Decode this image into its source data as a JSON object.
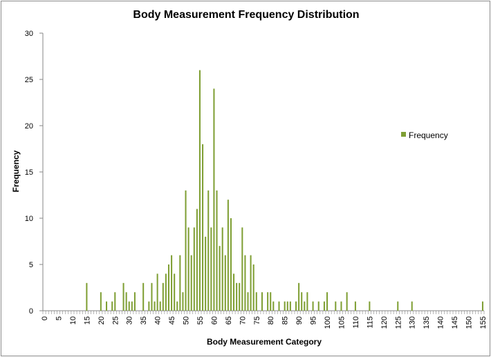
{
  "chart_data": {
    "type": "bar",
    "title": "Body Measurement Frequency Distribution",
    "xlabel": "Body Measurement Category",
    "ylabel": "Frequency",
    "ylim": [
      0,
      30
    ],
    "yticks": [
      0,
      5,
      10,
      15,
      20,
      25,
      30
    ],
    "xlim": [
      0,
      155
    ],
    "xtick_step": 5,
    "grid": false,
    "legend_position": "right",
    "series": [
      {
        "name": "Frequency",
        "color": "#7f9f34",
        "points": [
          [
            15,
            3
          ],
          [
            20,
            2
          ],
          [
            22,
            1
          ],
          [
            24,
            1
          ],
          [
            25,
            2
          ],
          [
            28,
            3
          ],
          [
            29,
            2
          ],
          [
            30,
            1
          ],
          [
            31,
            1
          ],
          [
            32,
            2
          ],
          [
            35,
            3
          ],
          [
            37,
            1
          ],
          [
            38,
            3
          ],
          [
            39,
            1
          ],
          [
            40,
            4
          ],
          [
            41,
            1
          ],
          [
            42,
            3
          ],
          [
            43,
            4
          ],
          [
            44,
            5
          ],
          [
            45,
            6
          ],
          [
            46,
            4
          ],
          [
            47,
            1
          ],
          [
            48,
            6
          ],
          [
            49,
            2
          ],
          [
            50,
            13
          ],
          [
            51,
            9
          ],
          [
            52,
            6
          ],
          [
            53,
            9
          ],
          [
            54,
            11
          ],
          [
            55,
            26
          ],
          [
            56,
            18
          ],
          [
            57,
            8
          ],
          [
            58,
            13
          ],
          [
            59,
            9
          ],
          [
            60,
            24
          ],
          [
            61,
            13
          ],
          [
            62,
            7
          ],
          [
            63,
            9
          ],
          [
            64,
            6
          ],
          [
            65,
            12
          ],
          [
            66,
            10
          ],
          [
            67,
            4
          ],
          [
            68,
            3
          ],
          [
            69,
            3
          ],
          [
            70,
            9
          ],
          [
            71,
            6
          ],
          [
            72,
            2
          ],
          [
            73,
            6
          ],
          [
            74,
            5
          ],
          [
            75,
            2
          ],
          [
            77,
            2
          ],
          [
            79,
            2
          ],
          [
            80,
            2
          ],
          [
            81,
            1
          ],
          [
            83,
            1
          ],
          [
            85,
            1
          ],
          [
            86,
            1
          ],
          [
            87,
            1
          ],
          [
            89,
            1
          ],
          [
            90,
            3
          ],
          [
            91,
            2
          ],
          [
            92,
            1
          ],
          [
            93,
            2
          ],
          [
            95,
            1
          ],
          [
            97,
            1
          ],
          [
            99,
            1
          ],
          [
            100,
            2
          ],
          [
            103,
            1
          ],
          [
            105,
            1
          ],
          [
            107,
            2
          ],
          [
            110,
            1
          ],
          [
            115,
            1
          ],
          [
            125,
            1
          ],
          [
            130,
            1
          ],
          [
            155,
            1
          ]
        ]
      }
    ]
  }
}
